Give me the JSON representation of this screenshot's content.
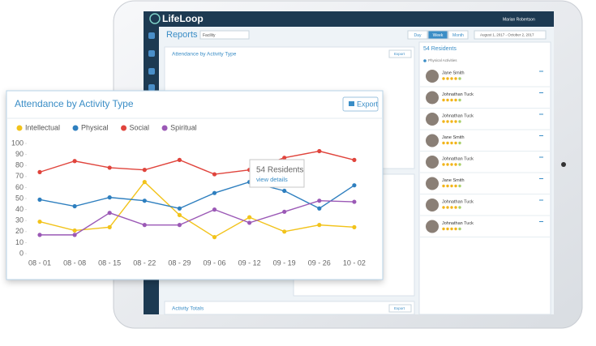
{
  "app": {
    "brand": "LifeLoop",
    "user": "Marian Robertson",
    "page_title": "Reports",
    "facility": "Facility",
    "range_buttons": [
      "Day",
      "Week",
      "Month"
    ],
    "date_range": "August 1, 2017 - October 2, 2017",
    "export": "Export",
    "background_panels": [
      "Attendance by Activity Type",
      "Activity Totals"
    ]
  },
  "residents": {
    "title": "54 Residents",
    "filter": "Physical Activities",
    "names": [
      "Jane Smith",
      "Johnathan Tuck",
      "Johnathan Tuck",
      "Jane Smith",
      "Johnathan Tuck",
      "Jane Smith",
      "Johnathan Tuck",
      "Johnathan Tuck"
    ]
  },
  "chart_data": {
    "type": "line",
    "title": "Attendance by Activity Type",
    "export": "Export",
    "categories": [
      "08 - 01",
      "08 - 08",
      "08 - 15",
      "08 - 22",
      "08 - 29",
      "09 - 06",
      "09 - 12",
      "09 - 19",
      "09 - 26",
      "10 - 02"
    ],
    "series": [
      {
        "name": "Intellectual",
        "color": "#f2c31b",
        "values": [
          29,
          21,
          24,
          65,
          35,
          15,
          33,
          20,
          26,
          24
        ]
      },
      {
        "name": "Physical",
        "color": "#2e7fbf",
        "values": [
          49,
          43,
          51,
          48,
          41,
          55,
          65,
          57,
          41,
          62
        ]
      },
      {
        "name": "Social",
        "color": "#e0443c",
        "values": [
          74,
          84,
          78,
          76,
          85,
          72,
          76,
          87,
          93,
          85
        ]
      },
      {
        "name": "Spiritual",
        "color": "#9b59b6",
        "values": [
          17,
          17,
          37,
          26,
          26,
          40,
          28,
          38,
          48,
          47
        ]
      }
    ],
    "ylim": [
      0,
      100
    ],
    "yticks": [
      0,
      10,
      20,
      30,
      40,
      50,
      60,
      70,
      80,
      90,
      100
    ],
    "tooltip": {
      "title": "54 Residents",
      "link": "view details"
    }
  }
}
